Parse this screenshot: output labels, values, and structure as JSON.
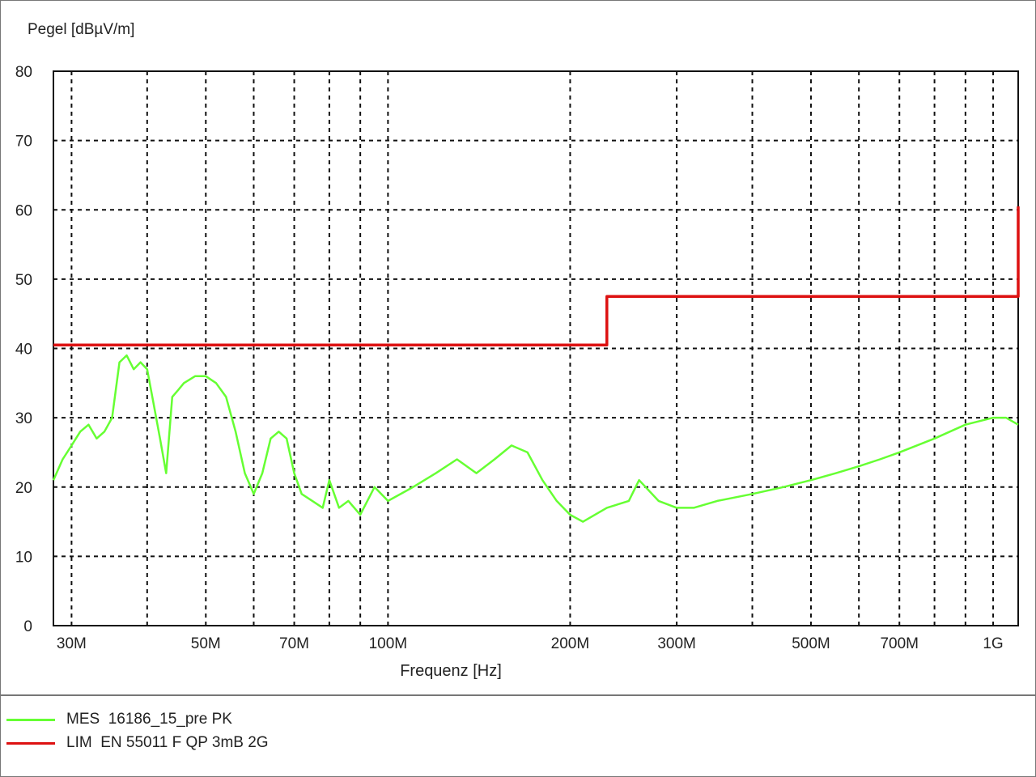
{
  "chart_data": {
    "type": "line",
    "ylabel": "Pegel [dBµV/m]",
    "xlabel": "Frequenz [Hz]",
    "x_scale": "log",
    "xlim": [
      28000000,
      1100000000
    ],
    "ylim": [
      0,
      80
    ],
    "grid": true,
    "y_ticks": [
      0,
      10,
      20,
      30,
      40,
      50,
      60,
      70,
      80
    ],
    "y_tick_labels": [
      "0",
      "10",
      "20",
      "30",
      "40",
      "50",
      "60",
      "70",
      "80"
    ],
    "x_ticks": [
      30000000,
      50000000,
      70000000,
      100000000,
      200000000,
      300000000,
      500000000,
      700000000,
      1000000000
    ],
    "x_tick_labels": [
      "30M",
      "50M",
      "70M",
      "100M",
      "200M",
      "300M",
      "500M",
      "700M",
      "1G"
    ],
    "x_minor_gridlines": [
      40000000,
      60000000,
      80000000,
      90000000,
      400000000,
      600000000,
      800000000,
      900000000
    ],
    "legend_position": "bottom",
    "series": [
      {
        "name": "MES  16186_15_pre PK",
        "color": "#66ff33",
        "x": [
          28000000,
          29000000,
          30000000,
          31000000,
          32000000,
          33000000,
          34000000,
          35000000,
          36000000,
          37000000,
          38000000,
          39000000,
          40000000,
          41000000,
          42000000,
          43000000,
          44000000,
          45000000,
          46000000,
          48000000,
          50000000,
          52000000,
          54000000,
          56000000,
          58000000,
          60000000,
          62000000,
          64000000,
          66000000,
          68000000,
          70000000,
          72000000,
          75000000,
          78000000,
          80000000,
          83000000,
          86000000,
          90000000,
          95000000,
          100000000,
          110000000,
          120000000,
          130000000,
          140000000,
          150000000,
          160000000,
          170000000,
          180000000,
          190000000,
          200000000,
          210000000,
          230000000,
          250000000,
          260000000,
          280000000,
          300000000,
          320000000,
          350000000,
          400000000,
          450000000,
          500000000,
          550000000,
          600000000,
          650000000,
          700000000,
          800000000,
          900000000,
          1000000000,
          1050000000,
          1100000000
        ],
        "y": [
          21,
          24,
          26,
          28,
          29,
          27,
          28,
          30,
          38,
          39,
          37,
          38,
          37,
          32,
          27,
          22,
          33,
          34,
          35,
          36,
          36,
          35,
          33,
          28,
          22,
          19,
          22,
          27,
          28,
          27,
          22,
          19,
          18,
          17,
          21,
          17,
          18,
          16,
          20,
          18,
          20,
          22,
          24,
          22,
          24,
          26,
          25,
          21,
          18,
          16,
          15,
          17,
          18,
          21,
          18,
          17,
          17,
          18,
          19,
          20,
          21,
          22,
          23,
          24,
          25,
          27,
          29,
          30,
          30,
          29
        ]
      },
      {
        "name": "LIM  EN 55011 F QP 3mB 2G",
        "color": "#dd1111",
        "x": [
          28000000,
          230000000,
          230000000,
          1100000000,
          1100000000
        ],
        "y": [
          40.5,
          40.5,
          47.5,
          47.5,
          60.5
        ]
      }
    ]
  }
}
